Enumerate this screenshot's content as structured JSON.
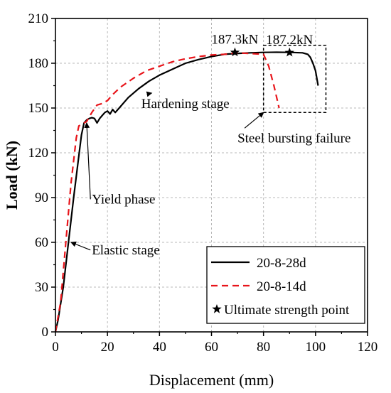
{
  "chart_data": {
    "type": "line",
    "xlabel": "Displacement (mm)",
    "ylabel": "Load (kN)",
    "xlim": [
      0,
      120
    ],
    "ylim": [
      0,
      210
    ],
    "x_ticks": [
      0,
      20,
      40,
      60,
      80,
      100,
      120
    ],
    "y_ticks": [
      0,
      30,
      60,
      90,
      120,
      150,
      180,
      210
    ],
    "grid": true,
    "legend_position": "bottom-right",
    "series": [
      {
        "name": "20-8-28d",
        "color": "#000000",
        "style": "solid",
        "points": [
          [
            0,
            0
          ],
          [
            1,
            8
          ],
          [
            3,
            30
          ],
          [
            5,
            60
          ],
          [
            7,
            90
          ],
          [
            9,
            118
          ],
          [
            10,
            132
          ],
          [
            11,
            140
          ],
          [
            12,
            142
          ],
          [
            13,
            143
          ],
          [
            14,
            143.5
          ],
          [
            15,
            143
          ],
          [
            16,
            140
          ],
          [
            17,
            143
          ],
          [
            18,
            145
          ],
          [
            19,
            147
          ],
          [
            20,
            148
          ],
          [
            21,
            146
          ],
          [
            22,
            149
          ],
          [
            23,
            147
          ],
          [
            24,
            149
          ],
          [
            25,
            151
          ],
          [
            28,
            157
          ],
          [
            32,
            163
          ],
          [
            36,
            168
          ],
          [
            40,
            172
          ],
          [
            45,
            176
          ],
          [
            50,
            180
          ],
          [
            55,
            182.5
          ],
          [
            60,
            184.5
          ],
          [
            65,
            186
          ],
          [
            69,
            186.5
          ],
          [
            75,
            187
          ],
          [
            80,
            187.3
          ],
          [
            85,
            187.4
          ],
          [
            90,
            187.3
          ],
          [
            95,
            187
          ],
          [
            97,
            186
          ],
          [
            98,
            184
          ],
          [
            99,
            180
          ],
          [
            100,
            175
          ],
          [
            101,
            165
          ]
        ]
      },
      {
        "name": "20-8-14d",
        "color": "#e8141a",
        "style": "dashed",
        "points": [
          [
            0,
            0
          ],
          [
            2,
            20
          ],
          [
            4,
            60
          ],
          [
            6,
            100
          ],
          [
            8,
            130
          ],
          [
            9,
            138
          ],
          [
            10,
            139
          ],
          [
            12,
            141
          ],
          [
            14,
            147
          ],
          [
            16,
            152
          ],
          [
            18,
            153
          ],
          [
            20,
            155
          ],
          [
            22,
            159
          ],
          [
            25,
            164
          ],
          [
            30,
            170
          ],
          [
            35,
            175
          ],
          [
            40,
            178
          ],
          [
            45,
            181
          ],
          [
            50,
            183
          ],
          [
            55,
            184.5
          ],
          [
            60,
            185.5
          ],
          [
            65,
            186
          ],
          [
            70,
            187
          ],
          [
            75,
            186.5
          ],
          [
            80,
            186
          ],
          [
            82,
            178
          ],
          [
            84,
            165
          ],
          [
            86,
            150
          ]
        ]
      }
    ],
    "ultimate_points": {
      "legend": "Ultimate strength point",
      "points": [
        {
          "x": 69,
          "y": 187.3,
          "label": "187.3kN"
        },
        {
          "x": 90,
          "y": 187.2,
          "label": "187.2kN"
        }
      ]
    },
    "annotations": [
      {
        "text": "Elastic stage",
        "x": 14,
        "y": 52,
        "arrow_to": [
          6,
          60
        ]
      },
      {
        "text": "Yield phase",
        "x": 14,
        "y": 86,
        "arrow_to": [
          12,
          140
        ]
      },
      {
        "text": "Hardening stage",
        "x": 33,
        "y": 150,
        "arrow_to": [
          37,
          160
        ]
      },
      {
        "text": "Steel bursting failure",
        "x": 70,
        "y": 127,
        "arrow_to": [
          80,
          147
        ]
      }
    ],
    "failure_box": {
      "x0": 80,
      "x1": 104,
      "y0": 147,
      "y1": 192
    }
  }
}
